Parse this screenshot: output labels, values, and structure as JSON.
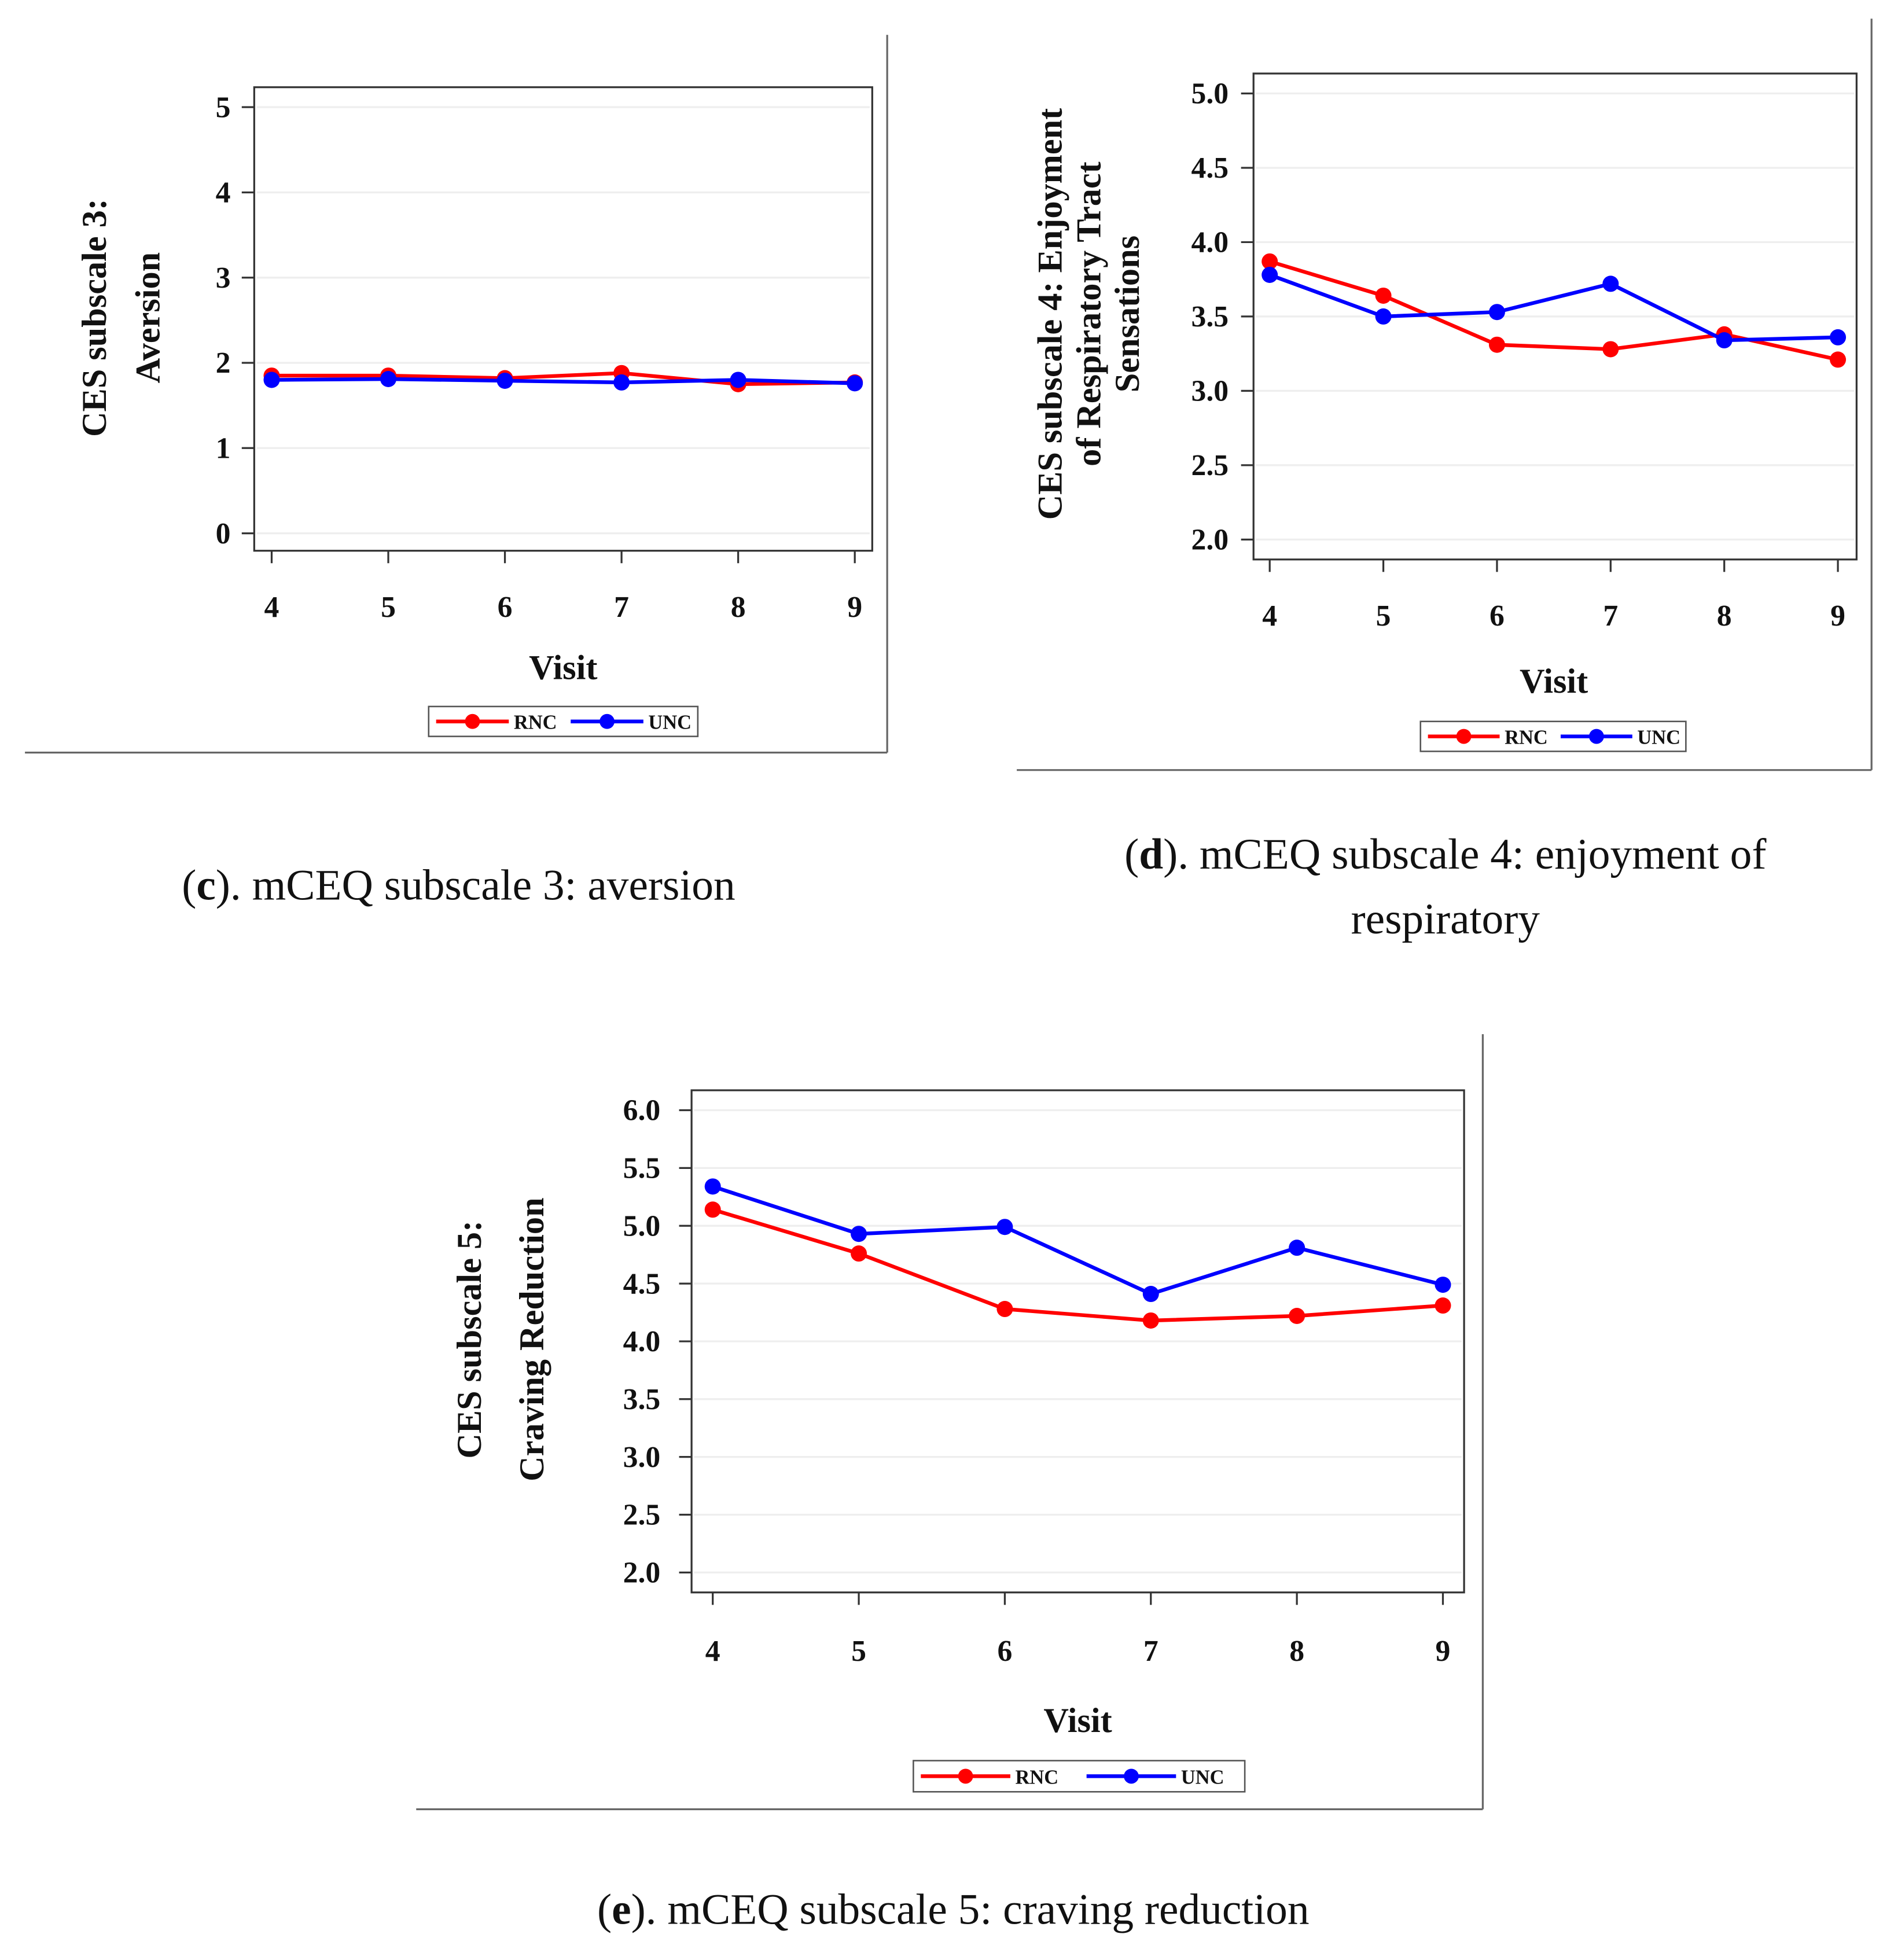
{
  "chart_data": [
    {
      "id": "c",
      "type": "line",
      "ylabel_lines": [
        "CES subscale 3:",
        "Aversion"
      ],
      "xlabel": "Visit",
      "x": [
        4,
        5,
        6,
        7,
        8,
        9
      ],
      "ylim": [
        0,
        5
      ],
      "yticks": [
        "0",
        "1",
        "2",
        "3",
        "4",
        "5"
      ],
      "ytick_values": [
        0,
        1,
        2,
        3,
        4,
        5
      ],
      "series": [
        {
          "name": "RNC",
          "color": "#ff0000",
          "values": [
            1.85,
            1.85,
            1.82,
            1.88,
            1.75,
            1.77
          ]
        },
        {
          "name": "UNC",
          "color": "#0000ff",
          "values": [
            1.8,
            1.81,
            1.79,
            1.77,
            1.8,
            1.76
          ]
        }
      ],
      "legend": "bottom",
      "grid": true,
      "caption_letter": "c",
      "caption_lines": [
        "). mCEQ subscale 3: aversion"
      ]
    },
    {
      "id": "d",
      "type": "line",
      "ylabel_lines": [
        "CES subscale 4: Enjoyment",
        "of Respiratory Tract",
        "Sensations"
      ],
      "xlabel": "Visit",
      "x": [
        4,
        5,
        6,
        7,
        8,
        9
      ],
      "ylim": [
        2.0,
        5.0
      ],
      "yticks": [
        "2.0",
        "2.5",
        "3.0",
        "3.5",
        "4.0",
        "4.5",
        "5.0"
      ],
      "ytick_values": [
        2.0,
        2.5,
        3.0,
        3.5,
        4.0,
        4.5,
        5.0
      ],
      "series": [
        {
          "name": "RNC",
          "color": "#ff0000",
          "values": [
            3.87,
            3.64,
            3.31,
            3.28,
            3.38,
            3.21
          ]
        },
        {
          "name": "UNC",
          "color": "#0000ff",
          "values": [
            3.78,
            3.5,
            3.53,
            3.72,
            3.34,
            3.36
          ]
        }
      ],
      "legend": "bottom",
      "grid": true,
      "caption_letter": "d",
      "caption_lines": [
        "). mCEQ subscale 4: enjoyment of",
        "respiratory"
      ]
    },
    {
      "id": "e",
      "type": "line",
      "ylabel_lines": [
        "CES subscale 5:",
        "Craving Reduction"
      ],
      "xlabel": "Visit",
      "x": [
        4,
        5,
        6,
        7,
        8,
        9
      ],
      "ylim": [
        2.0,
        6.0
      ],
      "yticks": [
        "2.0",
        "2.5",
        "3.0",
        "3.5",
        "4.0",
        "4.5",
        "5.0",
        "5.5",
        "6.0"
      ],
      "ytick_values": [
        2.0,
        2.5,
        3.0,
        3.5,
        4.0,
        4.5,
        5.0,
        5.5,
        6.0
      ],
      "series": [
        {
          "name": "RNC",
          "color": "#ff0000",
          "values": [
            5.14,
            4.76,
            4.28,
            4.18,
            4.22,
            4.31
          ]
        },
        {
          "name": "UNC",
          "color": "#0000ff",
          "values": [
            5.34,
            4.93,
            4.99,
            4.41,
            4.81,
            4.49
          ]
        }
      ],
      "legend": "bottom",
      "grid": true,
      "caption_letter": "e",
      "caption_lines": [
        "). mCEQ subscale 5: craving reduction"
      ]
    }
  ]
}
